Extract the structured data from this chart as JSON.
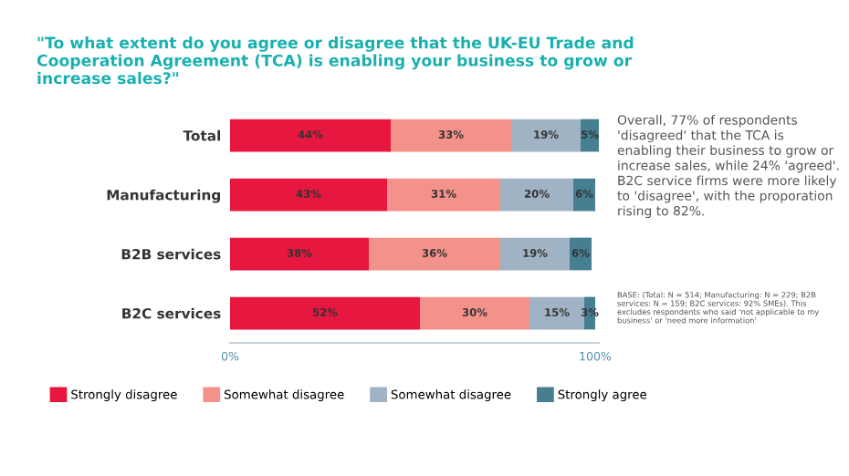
{
  "chart_data": {
    "type": "bar",
    "orientation": "horizontal",
    "stacked": true,
    "title": "\"To what extent do you agree or disagree that the UK-EU Trade and Cooperation Agreement (TCA) is enabling your business to grow or increase sales?\"",
    "categories": [
      "Total",
      "Manufacturing",
      "B2B services",
      "B2C services"
    ],
    "series": [
      {
        "name": "Strongly disagree",
        "color": "#e8173f",
        "values": [
          44,
          43,
          38,
          52
        ],
        "value_labels": [
          "44%",
          "43%",
          "38%",
          "52%"
        ]
      },
      {
        "name": "Somewhat disagree",
        "color": "#f3928a",
        "values": [
          33,
          31,
          36,
          30
        ],
        "value_labels": [
          "33%",
          "31%",
          "36%",
          "30%"
        ]
      },
      {
        "name": "Somewhat disagree",
        "color": "#9fb3c4",
        "values": [
          19,
          20,
          19,
          15
        ],
        "value_labels": [
          "19%",
          "20%",
          "19%",
          "15%"
        ]
      },
      {
        "name": "Strongly agree",
        "color": "#467f92",
        "values": [
          5,
          6,
          6,
          3
        ],
        "value_labels": [
          "5%",
          "6%",
          "6%",
          "3%"
        ]
      }
    ],
    "xlim": [
      0,
      101
    ],
    "xticks": [
      {
        "value": 0,
        "label": "0%"
      },
      {
        "value": 100,
        "label": "100%"
      }
    ],
    "grid": false,
    "legend": "bottom",
    "annotations": [
      "Overall, 77% of respondents 'disagreed' that the TCA is enabling their business to grow or increase sales, while 24% 'agreed'. B2C service firms were more likely to 'disagree', with the proporation rising to 82%.",
      "BASE: (Total: N = 514; Manufacturing: N = 229; B2B services: N = 159; B2C services: 92% SMEs). This excludes respondents who said 'not applicable to my business' or 'need more information'"
    ]
  }
}
